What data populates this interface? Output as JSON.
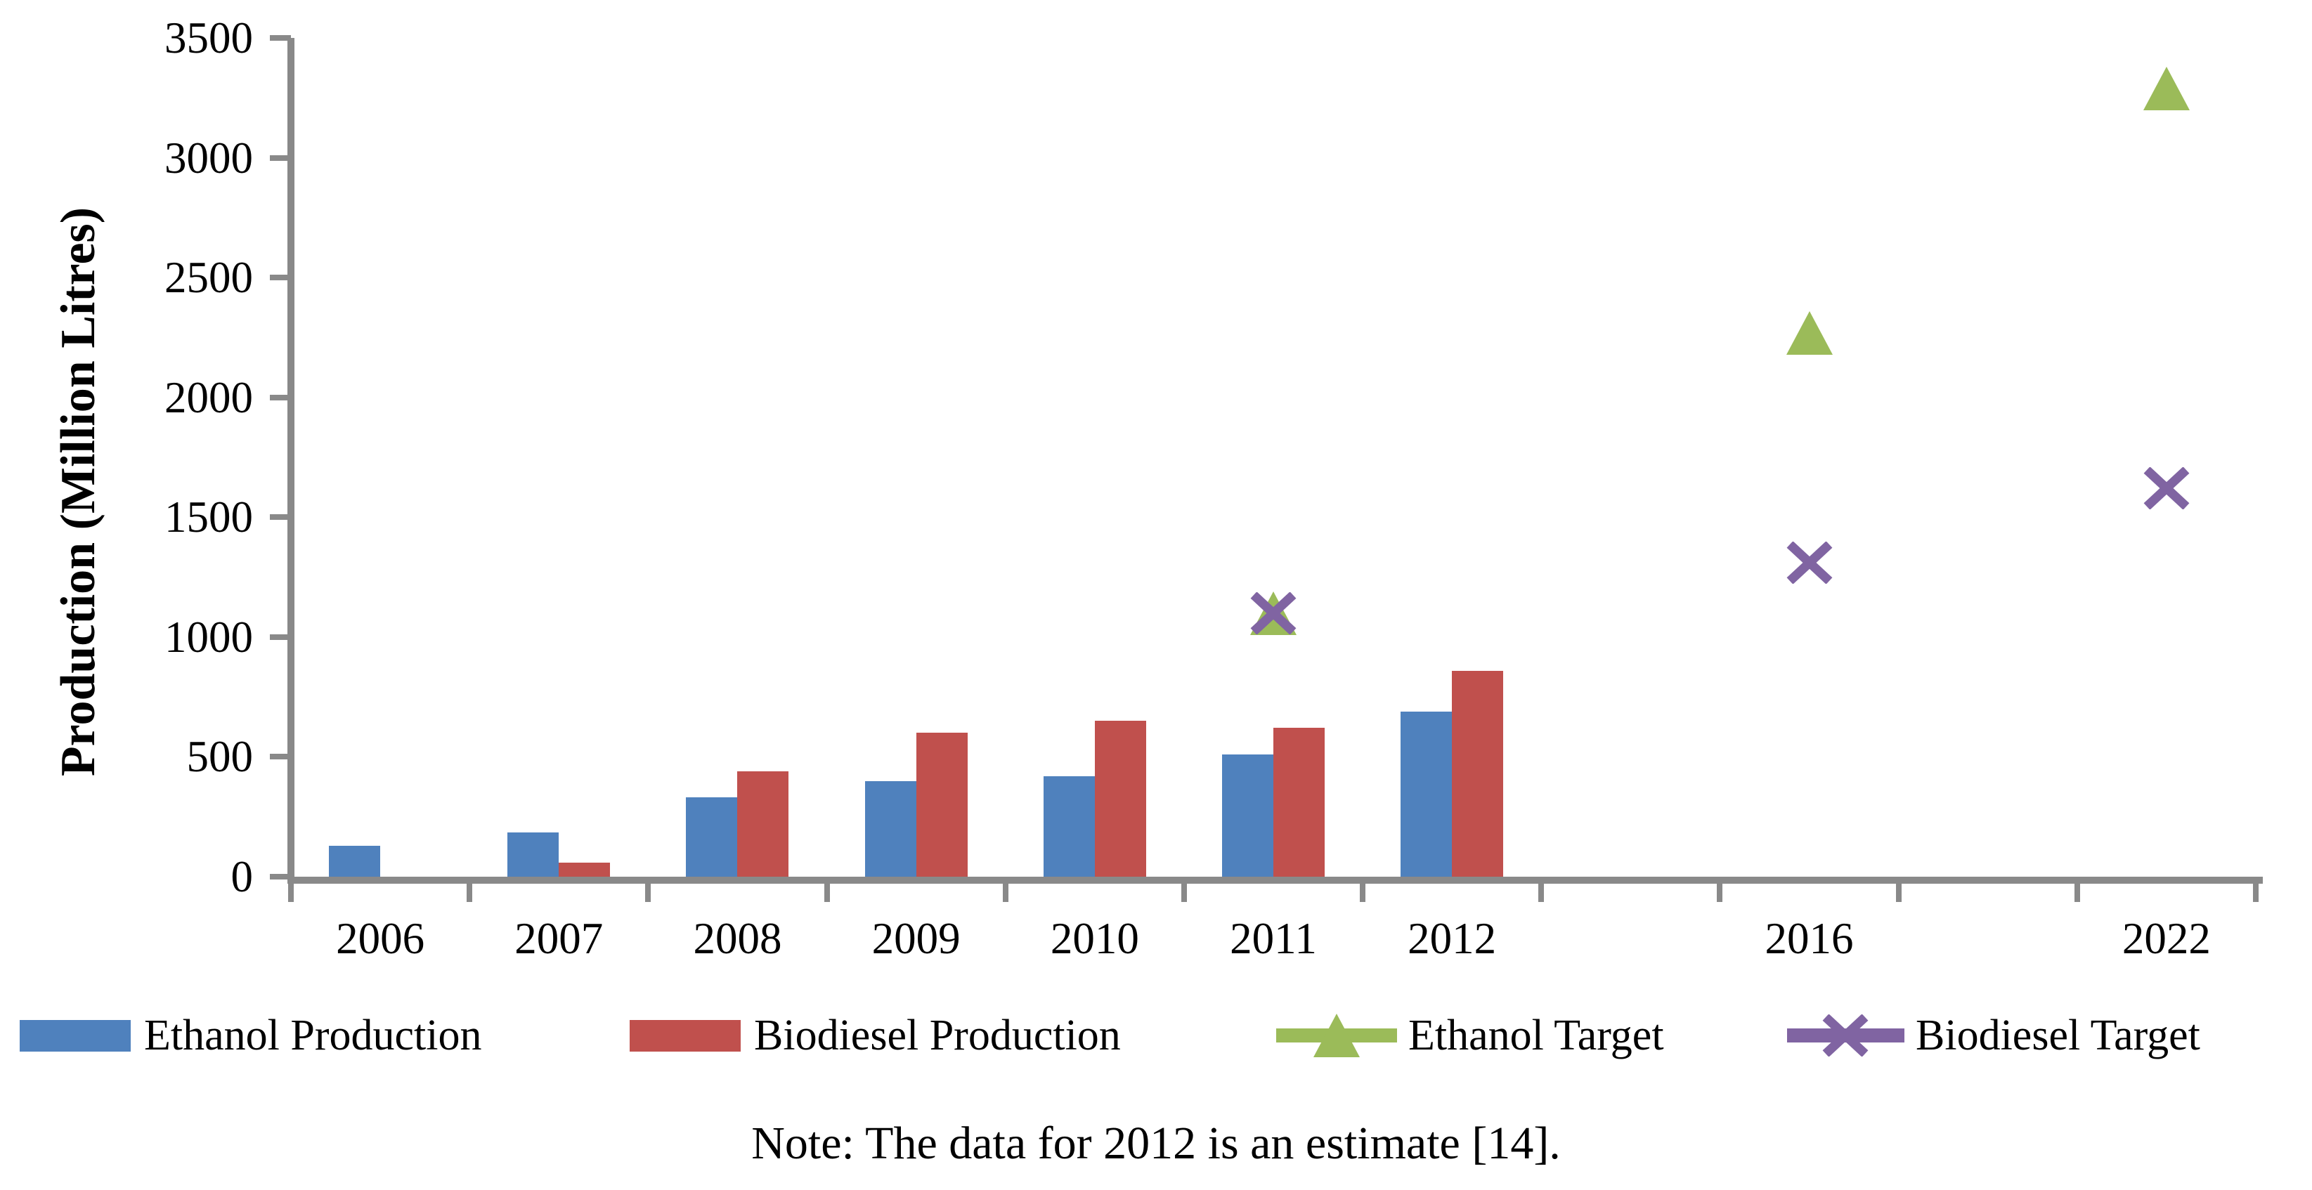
{
  "figure": {
    "note": "Note: The data for 2012 is an estimate [14].",
    "axis_color": "#898989",
    "text_color": "#000000",
    "background": "#FFFFFF"
  },
  "chart_data": {
    "type": "bar",
    "title": "",
    "ylabel": "Production (Million Litres)",
    "xlabel": "",
    "ylim": [
      0,
      3500
    ],
    "ytick_step": 500,
    "yticks": [
      0,
      500,
      1000,
      1500,
      2000,
      2500,
      3000,
      3500
    ],
    "grid": false,
    "legend_position": "bottom",
    "categories": [
      "2006",
      "2007",
      "2008",
      "2009",
      "2010",
      "2011",
      "2012",
      "",
      "2016",
      "",
      "2022"
    ],
    "series": [
      {
        "name": "Ethanol Production",
        "type": "bar",
        "color": "#4F81BD",
        "values": [
          130,
          185,
          330,
          400,
          420,
          510,
          690,
          null,
          null,
          null,
          null
        ]
      },
      {
        "name": "Biodiesel Production",
        "type": "bar",
        "color": "#C0504D",
        "values": [
          null,
          60,
          440,
          600,
          650,
          620,
          860,
          null,
          null,
          null,
          null
        ]
      },
      {
        "name": "Ethanol Target",
        "type": "scatter",
        "marker": "triangle",
        "color": "#9BBB59",
        "values": [
          null,
          null,
          null,
          null,
          null,
          1100,
          null,
          null,
          2270,
          null,
          3290
        ]
      },
      {
        "name": "Biodiesel Target",
        "type": "scatter",
        "marker": "x",
        "color": "#8064A2",
        "values": [
          null,
          null,
          null,
          null,
          null,
          1100,
          null,
          null,
          1310,
          null,
          1620
        ]
      }
    ]
  }
}
